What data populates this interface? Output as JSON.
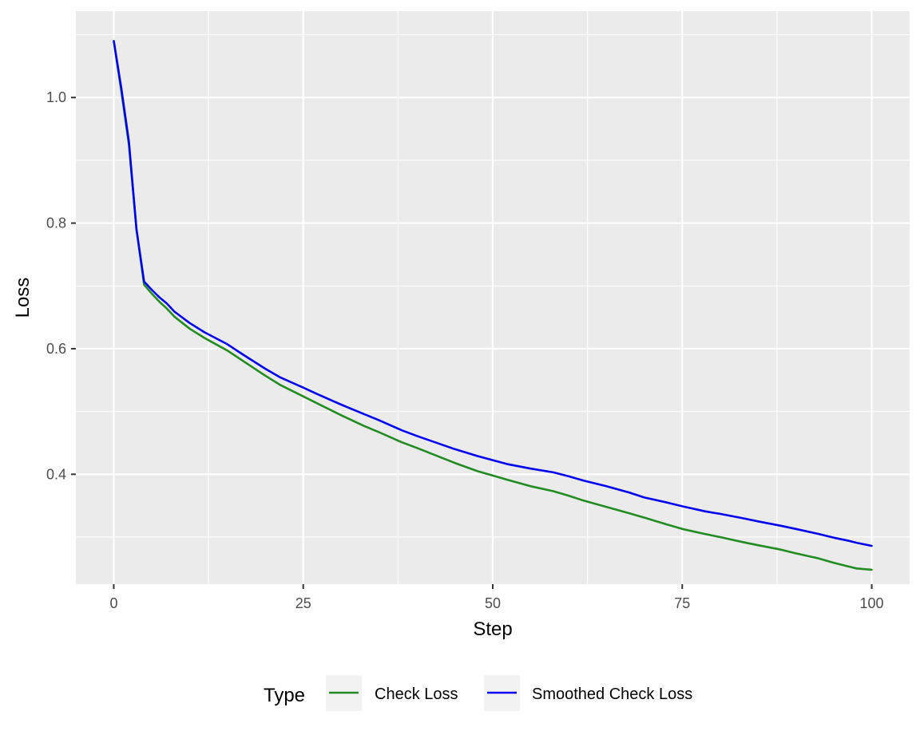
{
  "chart_data": {
    "type": "line",
    "title": "",
    "xlabel": "Step",
    "ylabel": "Loss",
    "xlim": [
      -5,
      105
    ],
    "ylim": [
      0.225,
      1.1375
    ],
    "xticks": [
      0,
      25,
      50,
      75,
      100
    ],
    "yticks": [
      0.4,
      0.6,
      0.8,
      1.0
    ],
    "ytick_labels": [
      "0.4",
      "0.6",
      "0.8",
      "1.0"
    ],
    "grid": true,
    "legend": {
      "title": "Type",
      "position": "bottom"
    },
    "series": [
      {
        "name": "Check Loss",
        "color": "#228b22",
        "x": [
          0,
          1,
          2,
          3,
          4,
          5,
          6,
          7,
          8,
          10,
          12,
          15,
          17,
          20,
          22,
          25,
          27,
          30,
          33,
          35,
          38,
          40,
          45,
          48,
          52,
          55,
          58,
          60,
          62,
          65,
          68,
          70,
          73,
          75,
          78,
          80,
          83,
          85,
          88,
          90,
          93,
          95,
          97,
          98,
          100
        ],
        "values": [
          1.09,
          1.01,
          0.925,
          0.79,
          0.702,
          0.688,
          0.675,
          0.664,
          0.651,
          0.632,
          0.617,
          0.597,
          0.581,
          0.557,
          0.542,
          0.524,
          0.512,
          0.494,
          0.477,
          0.467,
          0.451,
          0.442,
          0.418,
          0.405,
          0.391,
          0.381,
          0.373,
          0.366,
          0.358,
          0.348,
          0.338,
          0.331,
          0.32,
          0.313,
          0.305,
          0.3,
          0.292,
          0.287,
          0.28,
          0.274,
          0.266,
          0.259,
          0.253,
          0.25,
          0.248
        ]
      },
      {
        "name": "Smoothed Check Loss",
        "color": "#0000ee",
        "x": [
          0,
          1,
          2,
          3,
          4,
          5,
          6,
          7,
          8,
          10,
          12,
          15,
          17,
          20,
          22,
          25,
          27,
          30,
          33,
          35,
          38,
          40,
          45,
          48,
          52,
          55,
          58,
          60,
          62,
          65,
          68,
          70,
          73,
          75,
          78,
          80,
          83,
          85,
          88,
          90,
          93,
          95,
          97,
          98,
          100
        ],
        "values": [
          1.09,
          1.015,
          0.93,
          0.79,
          0.707,
          0.694,
          0.682,
          0.672,
          0.659,
          0.641,
          0.626,
          0.607,
          0.591,
          0.568,
          0.554,
          0.538,
          0.527,
          0.511,
          0.496,
          0.486,
          0.47,
          0.461,
          0.44,
          0.429,
          0.416,
          0.409,
          0.403,
          0.397,
          0.39,
          0.381,
          0.371,
          0.363,
          0.355,
          0.349,
          0.341,
          0.337,
          0.33,
          0.325,
          0.318,
          0.313,
          0.305,
          0.299,
          0.294,
          0.291,
          0.286
        ]
      }
    ]
  }
}
